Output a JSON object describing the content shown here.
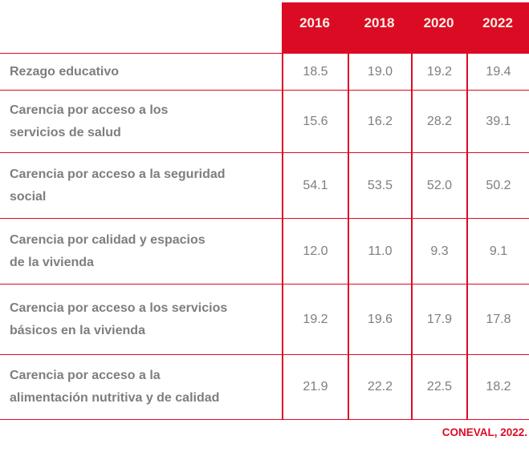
{
  "table": {
    "years": [
      "2016",
      "2018",
      "2020",
      "2022"
    ],
    "rows": [
      {
        "label_lines": [
          "Rezago educativo"
        ],
        "values": [
          "18.5",
          "19.0",
          "19.2",
          "19.4"
        ]
      },
      {
        "label_lines": [
          "Carencia por acceso a los",
          "servicios de salud"
        ],
        "values": [
          "15.6",
          "16.2",
          "28.2",
          "39.1"
        ]
      },
      {
        "label_lines": [
          "Carencia por acceso a la seguridad",
          "social"
        ],
        "values": [
          "54.1",
          "53.5",
          "52.0",
          "50.2"
        ]
      },
      {
        "label_lines": [
          "Carencia por calidad y espacios",
          "de la vivienda"
        ],
        "values": [
          "12.0",
          "11.0",
          "9.3",
          "9.1"
        ]
      },
      {
        "label_lines": [
          "Carencia por acceso a los servicios",
          "básicos en la vivienda"
        ],
        "values": [
          "19.2",
          "19.6",
          "17.9",
          "17.8"
        ]
      },
      {
        "label_lines": [
          "Carencia por acceso a la",
          "alimentación nutritiva y de calidad"
        ],
        "values": [
          "21.9",
          "22.2",
          "22.5",
          "18.2"
        ]
      }
    ]
  },
  "footer": {
    "source": "CONEVAL, 2022."
  },
  "colors": {
    "accent_red": "#DC0B24",
    "text_gray": "#7D7E80",
    "header_text_cream": "#F7F1E4"
  },
  "chart_data": {
    "type": "table",
    "title": "",
    "categories": [
      "Rezago educativo",
      "Carencia por acceso a los servicios de salud",
      "Carencia por acceso a la seguridad social",
      "Carencia por calidad y espacios de la vivienda",
      "Carencia por acceso a los servicios básicos en la vivienda",
      "Carencia por acceso a la alimentación nutritiva y de calidad"
    ],
    "series": [
      {
        "name": "2016",
        "values": [
          18.5,
          15.6,
          54.1,
          12.0,
          19.2,
          21.9
        ]
      },
      {
        "name": "2018",
        "values": [
          19.0,
          16.2,
          53.5,
          11.0,
          19.6,
          22.2
        ]
      },
      {
        "name": "2020",
        "values": [
          19.2,
          28.2,
          52.0,
          9.3,
          17.9,
          22.5
        ]
      },
      {
        "name": "2022",
        "values": [
          19.4,
          39.1,
          50.2,
          9.1,
          17.8,
          18.2
        ]
      }
    ],
    "source_note": "CONEVAL, 2022."
  }
}
